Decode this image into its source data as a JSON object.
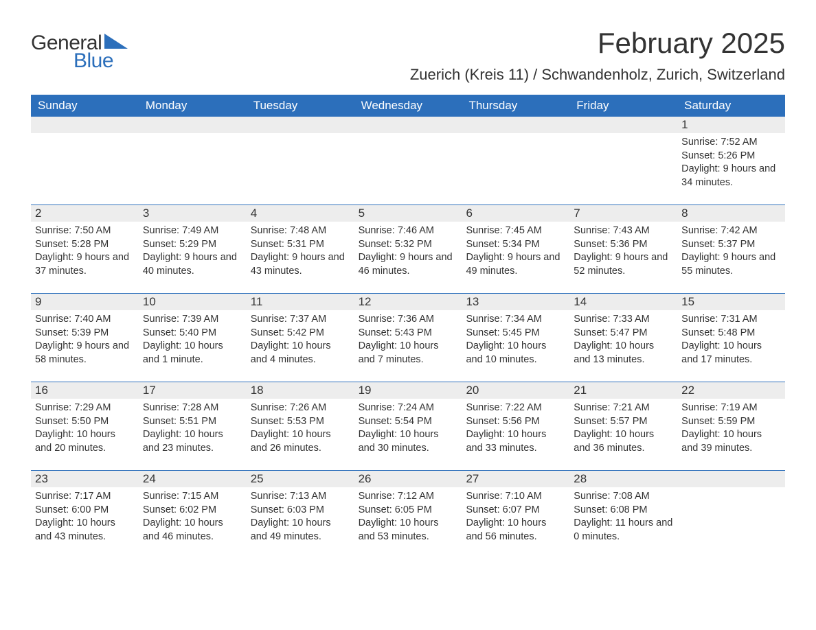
{
  "logo": {
    "line1": "General",
    "line2": "Blue"
  },
  "title": "February 2025",
  "location": "Zuerich (Kreis 11) / Schwandenholz, Zurich, Switzerland",
  "colors": {
    "accent": "#2c6fbb",
    "band": "#ededed",
    "text": "#333333",
    "bg": "#ffffff"
  },
  "day_labels": [
    "Sunday",
    "Monday",
    "Tuesday",
    "Wednesday",
    "Thursday",
    "Friday",
    "Saturday"
  ],
  "weeks": [
    [
      {},
      {},
      {},
      {},
      {},
      {},
      {
        "n": "1",
        "sr": "7:52 AM",
        "ss": "5:26 PM",
        "dl": "9 hours and 34 minutes."
      }
    ],
    [
      {
        "n": "2",
        "sr": "7:50 AM",
        "ss": "5:28 PM",
        "dl": "9 hours and 37 minutes."
      },
      {
        "n": "3",
        "sr": "7:49 AM",
        "ss": "5:29 PM",
        "dl": "9 hours and 40 minutes."
      },
      {
        "n": "4",
        "sr": "7:48 AM",
        "ss": "5:31 PM",
        "dl": "9 hours and 43 minutes."
      },
      {
        "n": "5",
        "sr": "7:46 AM",
        "ss": "5:32 PM",
        "dl": "9 hours and 46 minutes."
      },
      {
        "n": "6",
        "sr": "7:45 AM",
        "ss": "5:34 PM",
        "dl": "9 hours and 49 minutes."
      },
      {
        "n": "7",
        "sr": "7:43 AM",
        "ss": "5:36 PM",
        "dl": "9 hours and 52 minutes."
      },
      {
        "n": "8",
        "sr": "7:42 AM",
        "ss": "5:37 PM",
        "dl": "9 hours and 55 minutes."
      }
    ],
    [
      {
        "n": "9",
        "sr": "7:40 AM",
        "ss": "5:39 PM",
        "dl": "9 hours and 58 minutes."
      },
      {
        "n": "10",
        "sr": "7:39 AM",
        "ss": "5:40 PM",
        "dl": "10 hours and 1 minute."
      },
      {
        "n": "11",
        "sr": "7:37 AM",
        "ss": "5:42 PM",
        "dl": "10 hours and 4 minutes."
      },
      {
        "n": "12",
        "sr": "7:36 AM",
        "ss": "5:43 PM",
        "dl": "10 hours and 7 minutes."
      },
      {
        "n": "13",
        "sr": "7:34 AM",
        "ss": "5:45 PM",
        "dl": "10 hours and 10 minutes."
      },
      {
        "n": "14",
        "sr": "7:33 AM",
        "ss": "5:47 PM",
        "dl": "10 hours and 13 minutes."
      },
      {
        "n": "15",
        "sr": "7:31 AM",
        "ss": "5:48 PM",
        "dl": "10 hours and 17 minutes."
      }
    ],
    [
      {
        "n": "16",
        "sr": "7:29 AM",
        "ss": "5:50 PM",
        "dl": "10 hours and 20 minutes."
      },
      {
        "n": "17",
        "sr": "7:28 AM",
        "ss": "5:51 PM",
        "dl": "10 hours and 23 minutes."
      },
      {
        "n": "18",
        "sr": "7:26 AM",
        "ss": "5:53 PM",
        "dl": "10 hours and 26 minutes."
      },
      {
        "n": "19",
        "sr": "7:24 AM",
        "ss": "5:54 PM",
        "dl": "10 hours and 30 minutes."
      },
      {
        "n": "20",
        "sr": "7:22 AM",
        "ss": "5:56 PM",
        "dl": "10 hours and 33 minutes."
      },
      {
        "n": "21",
        "sr": "7:21 AM",
        "ss": "5:57 PM",
        "dl": "10 hours and 36 minutes."
      },
      {
        "n": "22",
        "sr": "7:19 AM",
        "ss": "5:59 PM",
        "dl": "10 hours and 39 minutes."
      }
    ],
    [
      {
        "n": "23",
        "sr": "7:17 AM",
        "ss": "6:00 PM",
        "dl": "10 hours and 43 minutes."
      },
      {
        "n": "24",
        "sr": "7:15 AM",
        "ss": "6:02 PM",
        "dl": "10 hours and 46 minutes."
      },
      {
        "n": "25",
        "sr": "7:13 AM",
        "ss": "6:03 PM",
        "dl": "10 hours and 49 minutes."
      },
      {
        "n": "26",
        "sr": "7:12 AM",
        "ss": "6:05 PM",
        "dl": "10 hours and 53 minutes."
      },
      {
        "n": "27",
        "sr": "7:10 AM",
        "ss": "6:07 PM",
        "dl": "10 hours and 56 minutes."
      },
      {
        "n": "28",
        "sr": "7:08 AM",
        "ss": "6:08 PM",
        "dl": "11 hours and 0 minutes."
      },
      {}
    ]
  ],
  "labels": {
    "sunrise": "Sunrise: ",
    "sunset": "Sunset: ",
    "daylight": "Daylight: "
  }
}
